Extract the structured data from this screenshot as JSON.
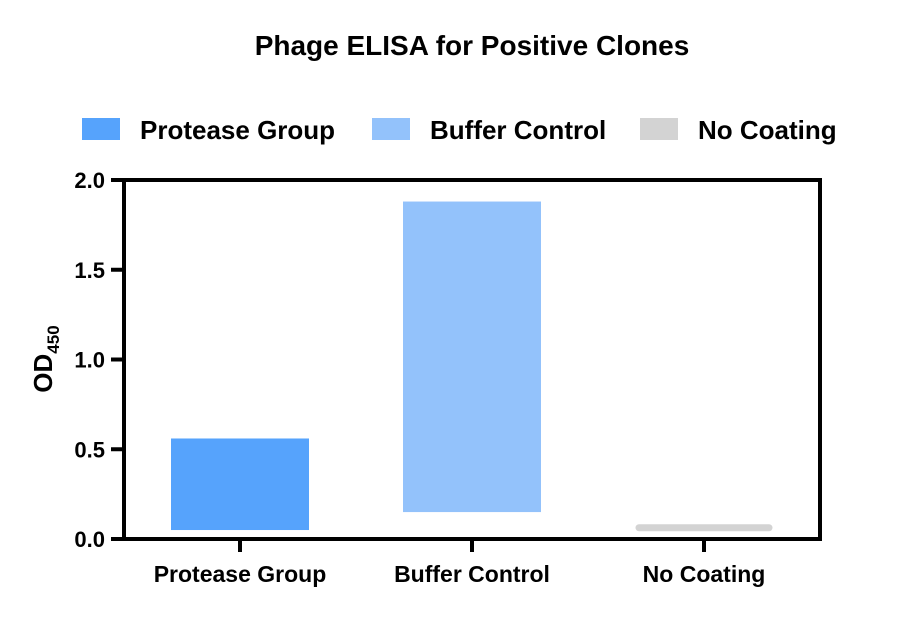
{
  "chart_data": {
    "type": "bar",
    "title": "Phage ELISA for Positive Clones",
    "ylabel_main": "OD",
    "ylabel_sub": "450",
    "ylim": [
      0,
      2.0
    ],
    "yticks": [
      "0.0",
      "0.5",
      "1.0",
      "1.5",
      "2.0"
    ],
    "ytick_values": [
      0,
      0.5,
      1.0,
      1.5,
      2.0
    ],
    "categories": [
      "Protease Group",
      "Buffer Control",
      "No Coating"
    ],
    "bars": [
      {
        "name": "Protease Group",
        "low": 0.05,
        "high": 0.56,
        "color": "#56a3fc"
      },
      {
        "name": "Buffer Control",
        "low": 0.15,
        "high": 1.88,
        "color": "#93c2fb"
      },
      {
        "name": "No Coating",
        "low": 0.055,
        "high": 0.07,
        "color": "#d3d3d3"
      }
    ],
    "legend": {
      "placement": "top",
      "entries": [
        {
          "label": "Protease Group",
          "color": "#56a3fc"
        },
        {
          "label": "Buffer Control",
          "color": "#93c2fb"
        },
        {
          "label": "No Coating",
          "color": "#d3d3d3"
        }
      ]
    },
    "grid": false
  }
}
